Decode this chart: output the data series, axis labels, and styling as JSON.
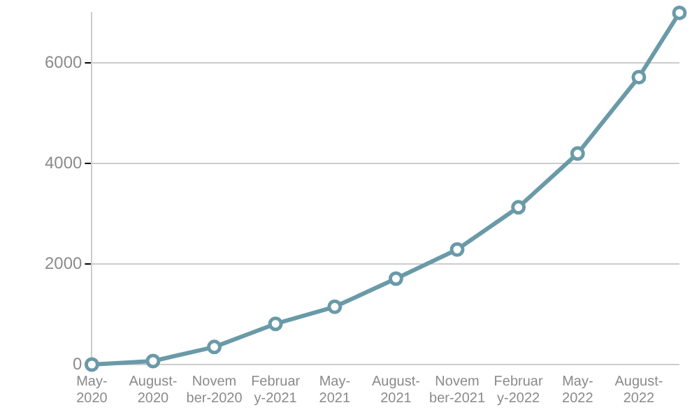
{
  "chart_data": {
    "type": "line",
    "x": [
      "2020-05",
      "2020-08",
      "2020-11",
      "2021-02",
      "2021-05",
      "2021-08",
      "2021-11",
      "2022-02",
      "2022-05",
      "2022-08",
      "2022-10"
    ],
    "series": [
      {
        "color": "#6a9aa8",
        "values": [
          0,
          70,
          350,
          810,
          1150,
          1710,
          2290,
          3130,
          4200,
          5720,
          7000
        ]
      }
    ],
    "xlim": [
      "2020-05",
      "2022-10"
    ],
    "xticks": [
      {
        "value": "2020-05",
        "label": "May-2020"
      },
      {
        "value": "2020-08",
        "label": "August-2020"
      },
      {
        "value": "2020-11",
        "label": "November-2020"
      },
      {
        "value": "2021-02",
        "label": "February-2021"
      },
      {
        "value": "2021-05",
        "label": "May-2021"
      },
      {
        "value": "2021-08",
        "label": "August-2021"
      },
      {
        "value": "2021-11",
        "label": "November-2021"
      },
      {
        "value": "2022-02",
        "label": "February-2022"
      },
      {
        "value": "2022-05",
        "label": "May-2022"
      },
      {
        "value": "2022-08",
        "label": "August-2022"
      }
    ],
    "ylim": [
      0,
      7000
    ],
    "yticks": [
      0,
      2000,
      4000,
      6000
    ],
    "grid": "y",
    "legend": false,
    "marker": "circle",
    "line_style": "solid"
  }
}
